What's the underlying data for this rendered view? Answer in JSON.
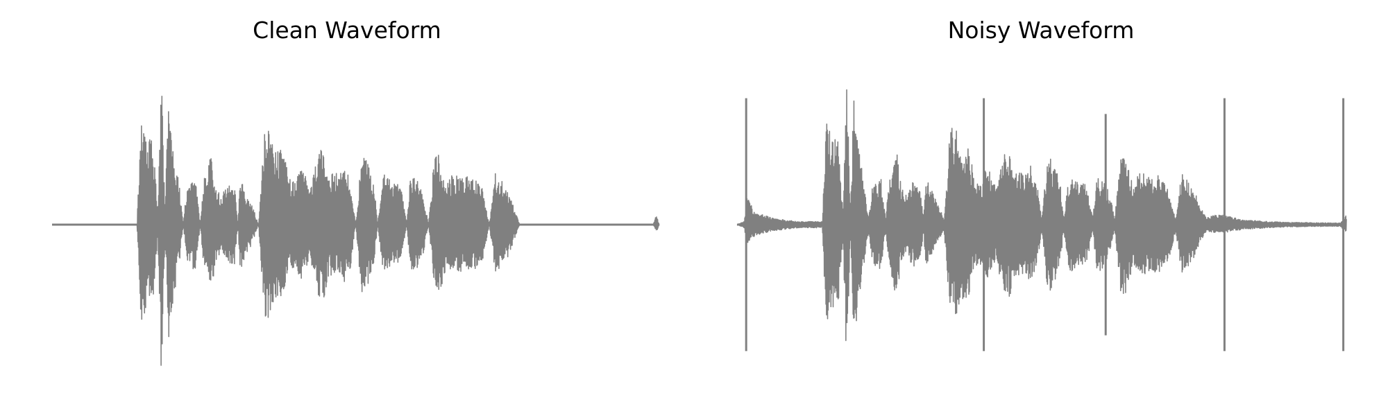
{
  "chart_data": [
    {
      "type": "line",
      "title": "Clean Waveform",
      "xlabel": "",
      "ylabel": "",
      "axis_visible": false,
      "grid": false,
      "line_color": "#808080",
      "xlim": [
        0,
        1
      ],
      "ylim": [
        -1.1,
        1.1
      ],
      "envelope": {
        "x": [
          0.0,
          0.14,
          0.146,
          0.15,
          0.156,
          0.166,
          0.174,
          0.18,
          0.186,
          0.192,
          0.2,
          0.21,
          0.216,
          0.222,
          0.23,
          0.236,
          0.244,
          0.25,
          0.262,
          0.27,
          0.28,
          0.286,
          0.292,
          0.3,
          0.306,
          0.31,
          0.33,
          0.34,
          0.35,
          0.36,
          0.366,
          0.38,
          0.39,
          0.402,
          0.41,
          0.42,
          0.426,
          0.438,
          0.448,
          0.456,
          0.466,
          0.474,
          0.482,
          0.492,
          0.5,
          0.51,
          0.52,
          0.53,
          0.536,
          0.546,
          0.56,
          0.574,
          0.584,
          0.59,
          0.6,
          0.61,
          0.62,
          0.63,
          0.64,
          0.65,
          0.66,
          0.67,
          0.68,
          0.69,
          0.7,
          0.71,
          0.72,
          0.73,
          0.74,
          0.75,
          0.76,
          0.77,
          0.78,
          0.79,
          0.8,
          0.99,
          0.995,
          1.0
        ],
        "upper": [
          0.0,
          0.0,
          0.68,
          0.63,
          0.54,
          0.55,
          0.08,
          1.0,
          0.08,
          0.85,
          0.48,
          0.24,
          0.0,
          0.24,
          0.28,
          0.3,
          0.0,
          0.3,
          0.47,
          0.23,
          0.18,
          0.27,
          0.28,
          0.28,
          0.0,
          0.31,
          0.12,
          0.0,
          0.62,
          0.6,
          0.5,
          0.48,
          0.3,
          0.28,
          0.38,
          0.28,
          0.24,
          0.47,
          0.47,
          0.33,
          0.33,
          0.32,
          0.38,
          0.28,
          0.0,
          0.46,
          0.39,
          0.28,
          0.0,
          0.33,
          0.27,
          0.25,
          0.0,
          0.3,
          0.3,
          0.22,
          0.0,
          0.45,
          0.45,
          0.25,
          0.33,
          0.32,
          0.3,
          0.32,
          0.28,
          0.22,
          0.0,
          0.33,
          0.28,
          0.22,
          0.12,
          0.0,
          0.0,
          0.0,
          0.0,
          0.0,
          0.06,
          0.0
        ],
        "lower": [
          0.0,
          0.0,
          -0.64,
          -0.6,
          -0.52,
          -0.54,
          -0.07,
          -1.0,
          -0.07,
          -0.74,
          -0.47,
          -0.23,
          0.0,
          -0.23,
          -0.28,
          -0.3,
          0.0,
          -0.3,
          -0.46,
          -0.23,
          -0.16,
          -0.26,
          -0.27,
          -0.27,
          0.0,
          -0.3,
          -0.11,
          0.0,
          -0.6,
          -0.58,
          -0.48,
          -0.46,
          -0.29,
          -0.27,
          -0.37,
          -0.27,
          -0.23,
          -0.46,
          -0.46,
          -0.32,
          -0.32,
          -0.31,
          -0.37,
          -0.27,
          0.0,
          -0.45,
          -0.38,
          -0.27,
          0.0,
          -0.32,
          -0.26,
          -0.24,
          0.0,
          -0.29,
          -0.29,
          -0.21,
          0.0,
          -0.44,
          -0.44,
          -0.24,
          -0.32,
          -0.31,
          -0.29,
          -0.31,
          -0.27,
          -0.21,
          0.0,
          -0.32,
          -0.27,
          -0.21,
          -0.11,
          0.0,
          0.0,
          0.0,
          0.0,
          0.0,
          -0.05,
          0.0
        ]
      }
    },
    {
      "type": "line",
      "title": "Noisy Waveform",
      "xlabel": "",
      "ylabel": "",
      "axis_visible": false,
      "grid": false,
      "line_color": "#808080",
      "xlim": [
        0,
        1
      ],
      "ylim": [
        -1.1,
        1.1
      ],
      "envelope": {
        "x": [
          0.0,
          0.012,
          0.016,
          0.03,
          0.06,
          0.1,
          0.14,
          0.146,
          0.15,
          0.156,
          0.166,
          0.174,
          0.18,
          0.186,
          0.192,
          0.2,
          0.21,
          0.216,
          0.222,
          0.23,
          0.236,
          0.244,
          0.25,
          0.262,
          0.27,
          0.28,
          0.286,
          0.292,
          0.3,
          0.306,
          0.31,
          0.33,
          0.34,
          0.35,
          0.36,
          0.366,
          0.38,
          0.39,
          0.402,
          0.41,
          0.42,
          0.426,
          0.438,
          0.448,
          0.456,
          0.466,
          0.474,
          0.482,
          0.492,
          0.5,
          0.51,
          0.52,
          0.53,
          0.536,
          0.546,
          0.56,
          0.574,
          0.584,
          0.59,
          0.6,
          0.61,
          0.62,
          0.63,
          0.64,
          0.65,
          0.66,
          0.67,
          0.68,
          0.69,
          0.7,
          0.71,
          0.72,
          0.73,
          0.74,
          0.75,
          0.76,
          0.77,
          0.78,
          0.8,
          0.83,
          0.9,
          0.99,
          1.0
        ],
        "upper": [
          0.0,
          0.02,
          0.18,
          0.08,
          0.04,
          0.02,
          0.02,
          0.68,
          0.63,
          0.54,
          0.55,
          0.08,
          1.0,
          0.08,
          0.85,
          0.48,
          0.24,
          0.04,
          0.24,
          0.28,
          0.3,
          0.04,
          0.3,
          0.47,
          0.23,
          0.18,
          0.27,
          0.28,
          0.28,
          0.04,
          0.31,
          0.12,
          0.04,
          0.62,
          0.6,
          0.5,
          0.48,
          0.3,
          0.28,
          0.38,
          0.28,
          0.24,
          0.47,
          0.47,
          0.33,
          0.33,
          0.32,
          0.38,
          0.28,
          0.04,
          0.46,
          0.39,
          0.28,
          0.04,
          0.33,
          0.27,
          0.25,
          0.04,
          0.3,
          0.3,
          0.22,
          0.04,
          0.45,
          0.45,
          0.25,
          0.33,
          0.32,
          0.3,
          0.32,
          0.28,
          0.22,
          0.04,
          0.33,
          0.28,
          0.22,
          0.12,
          0.04,
          0.06,
          0.06,
          0.03,
          0.015,
          0.01,
          0.06
        ],
        "lower": [
          0.0,
          -0.02,
          -0.12,
          -0.07,
          -0.04,
          -0.02,
          -0.02,
          -0.64,
          -0.6,
          -0.52,
          -0.54,
          -0.07,
          -1.0,
          -0.07,
          -0.74,
          -0.47,
          -0.23,
          -0.04,
          -0.23,
          -0.28,
          -0.3,
          -0.04,
          -0.3,
          -0.46,
          -0.23,
          -0.16,
          -0.26,
          -0.27,
          -0.27,
          -0.04,
          -0.3,
          -0.11,
          -0.04,
          -0.6,
          -0.58,
          -0.48,
          -0.46,
          -0.29,
          -0.27,
          -0.37,
          -0.27,
          -0.23,
          -0.46,
          -0.46,
          -0.32,
          -0.32,
          -0.31,
          -0.37,
          -0.27,
          -0.04,
          -0.45,
          -0.38,
          -0.27,
          -0.04,
          -0.32,
          -0.26,
          -0.24,
          -0.04,
          -0.29,
          -0.29,
          -0.21,
          -0.04,
          -0.44,
          -0.44,
          -0.24,
          -0.32,
          -0.31,
          -0.29,
          -0.31,
          -0.27,
          -0.21,
          -0.04,
          -0.32,
          -0.27,
          -0.21,
          -0.11,
          -0.04,
          -0.05,
          -0.05,
          -0.03,
          -0.015,
          -0.01,
          -0.05
        ]
      },
      "impulses": [
        {
          "x": 0.015,
          "y": 0.8
        },
        {
          "x": 0.405,
          "y": 0.8
        },
        {
          "x": 0.605,
          "y": 0.7
        },
        {
          "x": 0.8,
          "y": 0.8
        },
        {
          "x": 0.995,
          "y": 0.8
        }
      ]
    }
  ]
}
